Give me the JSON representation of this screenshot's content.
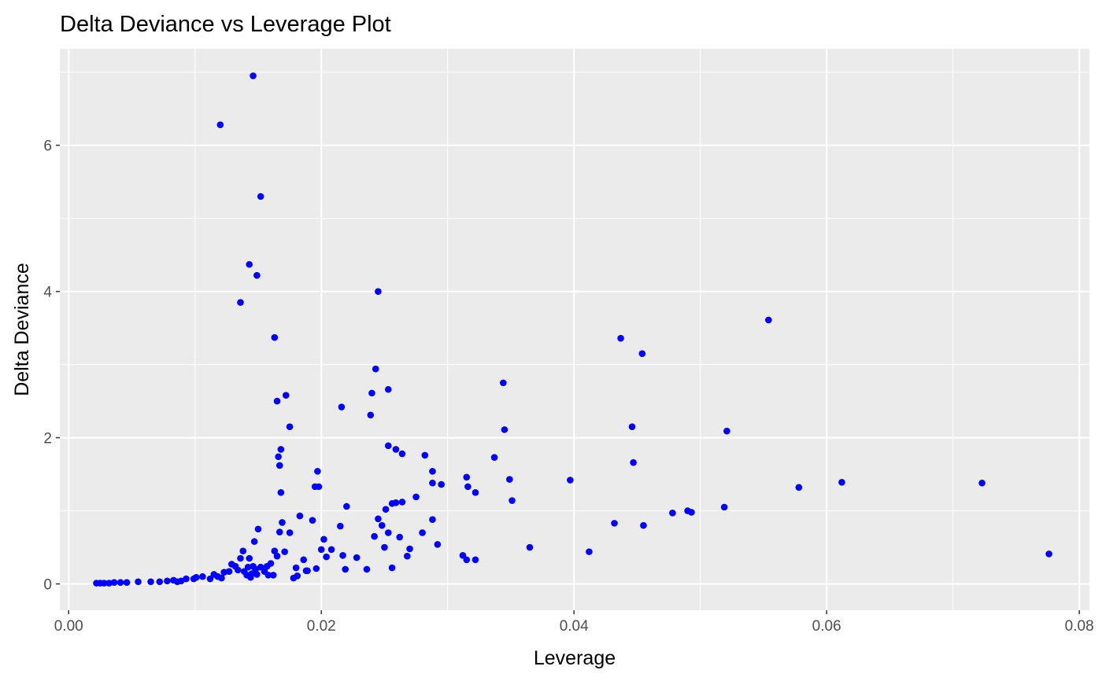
{
  "chart_data": {
    "type": "scatter",
    "title": "Delta Deviance vs Leverage Plot",
    "xlabel": "Leverage",
    "ylabel": "Delta Deviance",
    "xlim": [
      -0.0007,
      0.0808
    ],
    "ylim": [
      -0.36,
      7.32
    ],
    "x_ticks": [
      0.0,
      0.02,
      0.04,
      0.06,
      0.08
    ],
    "x_tick_labels": [
      "0.00",
      "0.02",
      "0.04",
      "0.06",
      "0.08"
    ],
    "y_ticks": [
      0,
      2,
      4,
      6
    ],
    "y_tick_labels": [
      "0",
      "2",
      "4",
      "6"
    ],
    "grid": true,
    "point_color": "#0000ff",
    "panel_background": "#ebebeb",
    "points": [
      [
        0.0022,
        0.01
      ],
      [
        0.0025,
        0.01
      ],
      [
        0.0028,
        0.01
      ],
      [
        0.0032,
        0.01
      ],
      [
        0.0036,
        0.02
      ],
      [
        0.0041,
        0.02
      ],
      [
        0.0046,
        0.02
      ],
      [
        0.0055,
        0.03
      ],
      [
        0.0065,
        0.03
      ],
      [
        0.0072,
        0.03
      ],
      [
        0.0078,
        0.04
      ],
      [
        0.0083,
        0.05
      ],
      [
        0.0086,
        0.03
      ],
      [
        0.0089,
        0.04
      ],
      [
        0.0093,
        0.07
      ],
      [
        0.0099,
        0.07
      ],
      [
        0.0101,
        0.09
      ],
      [
        0.0106,
        0.1
      ],
      [
        0.0112,
        0.07
      ],
      [
        0.0115,
        0.13
      ],
      [
        0.0118,
        0.1
      ],
      [
        0.0121,
        0.08
      ],
      [
        0.0123,
        0.16
      ],
      [
        0.0127,
        0.17
      ],
      [
        0.0129,
        0.27
      ],
      [
        0.0132,
        0.24
      ],
      [
        0.0134,
        0.19
      ],
      [
        0.0136,
        0.35
      ],
      [
        0.0138,
        0.45
      ],
      [
        0.0139,
        0.17
      ],
      [
        0.0141,
        0.12
      ],
      [
        0.0142,
        0.23
      ],
      [
        0.0143,
        0.35
      ],
      [
        0.0144,
        0.09
      ],
      [
        0.0145,
        0.14
      ],
      [
        0.0146,
        0.24
      ],
      [
        0.0147,
        0.58
      ],
      [
        0.0148,
        0.2
      ],
      [
        0.0149,
        0.13
      ],
      [
        0.015,
        0.75
      ],
      [
        0.0152,
        0.23
      ],
      [
        0.0155,
        0.17
      ],
      [
        0.0157,
        0.24
      ],
      [
        0.0158,
        0.12
      ],
      [
        0.016,
        0.28
      ],
      [
        0.0162,
        0.12
      ],
      [
        0.0163,
        0.45
      ],
      [
        0.0165,
        0.38
      ],
      [
        0.0167,
        0.71
      ],
      [
        0.0169,
        0.84
      ],
      [
        0.0171,
        0.44
      ],
      [
        0.0175,
        0.7
      ],
      [
        0.0178,
        0.08
      ],
      [
        0.018,
        0.22
      ],
      [
        0.0181,
        0.11
      ],
      [
        0.0183,
        0.93
      ],
      [
        0.0186,
        0.33
      ],
      [
        0.0188,
        0.18
      ],
      [
        0.0189,
        0.18
      ],
      [
        0.0193,
        0.87
      ],
      [
        0.0196,
        0.21
      ],
      [
        0.02,
        0.47
      ],
      [
        0.0202,
        0.61
      ],
      [
        0.0204,
        0.37
      ],
      [
        0.0208,
        0.47
      ],
      [
        0.0215,
        0.79
      ],
      [
        0.0217,
        0.39
      ],
      [
        0.0219,
        0.2
      ],
      [
        0.0228,
        0.36
      ],
      [
        0.0236,
        0.2
      ],
      [
        0.0242,
        0.65
      ],
      [
        0.0245,
        0.89
      ],
      [
        0.0248,
        0.8
      ],
      [
        0.025,
        0.5
      ],
      [
        0.0253,
        0.7
      ],
      [
        0.0256,
        0.22
      ],
      [
        0.0262,
        0.64
      ],
      [
        0.0268,
        0.38
      ],
      [
        0.027,
        0.48
      ],
      [
        0.0275,
        1.19
      ],
      [
        0.028,
        0.7
      ],
      [
        0.0288,
        0.88
      ],
      [
        0.0292,
        0.54
      ],
      [
        0.0312,
        0.39
      ],
      [
        0.0315,
        0.33
      ],
      [
        0.0322,
        0.33
      ],
      [
        0.0365,
        0.5
      ],
      [
        0.0412,
        0.44
      ],
      [
        0.0432,
        0.83
      ],
      [
        0.0455,
        0.8
      ],
      [
        0.0478,
        0.97
      ],
      [
        0.049,
        1.0
      ],
      [
        0.0493,
        0.98
      ],
      [
        0.0519,
        1.05
      ],
      [
        0.0578,
        1.32
      ],
      [
        0.0612,
        1.39
      ],
      [
        0.0723,
        1.38
      ],
      [
        0.0776,
        0.41
      ],
      [
        0.012,
        6.28
      ],
      [
        0.0146,
        6.95
      ],
      [
        0.0152,
        5.3
      ],
      [
        0.0143,
        4.37
      ],
      [
        0.0149,
        4.22
      ],
      [
        0.0136,
        3.85
      ],
      [
        0.0163,
        3.37
      ],
      [
        0.0165,
        2.5
      ],
      [
        0.0172,
        2.58
      ],
      [
        0.0175,
        2.15
      ],
      [
        0.0166,
        1.74
      ],
      [
        0.0168,
        1.84
      ],
      [
        0.0167,
        1.62
      ],
      [
        0.0168,
        1.25
      ],
      [
        0.0197,
        1.54
      ],
      [
        0.0195,
        1.33
      ],
      [
        0.0198,
        1.33
      ],
      [
        0.0216,
        2.42
      ],
      [
        0.022,
        1.06
      ],
      [
        0.0245,
        4.0
      ],
      [
        0.0243,
        2.94
      ],
      [
        0.024,
        2.61
      ],
      [
        0.0239,
        2.31
      ],
      [
        0.0253,
        2.66
      ],
      [
        0.0253,
        1.89
      ],
      [
        0.0259,
        1.84
      ],
      [
        0.0264,
        1.78
      ],
      [
        0.0256,
        1.1
      ],
      [
        0.0251,
        1.02
      ],
      [
        0.0259,
        1.11
      ],
      [
        0.0264,
        1.12
      ],
      [
        0.0282,
        1.76
      ],
      [
        0.0288,
        1.54
      ],
      [
        0.0288,
        1.38
      ],
      [
        0.0295,
        1.36
      ],
      [
        0.0315,
        1.46
      ],
      [
        0.0316,
        1.33
      ],
      [
        0.0322,
        1.25
      ],
      [
        0.0337,
        1.73
      ],
      [
        0.0344,
        2.75
      ],
      [
        0.0345,
        2.11
      ],
      [
        0.0349,
        1.43
      ],
      [
        0.0351,
        1.14
      ],
      [
        0.0397,
        1.42
      ],
      [
        0.0437,
        3.36
      ],
      [
        0.0446,
        2.15
      ],
      [
        0.0447,
        1.66
      ],
      [
        0.0454,
        3.15
      ],
      [
        0.0554,
        3.61
      ],
      [
        0.0521,
        2.09
      ]
    ]
  }
}
